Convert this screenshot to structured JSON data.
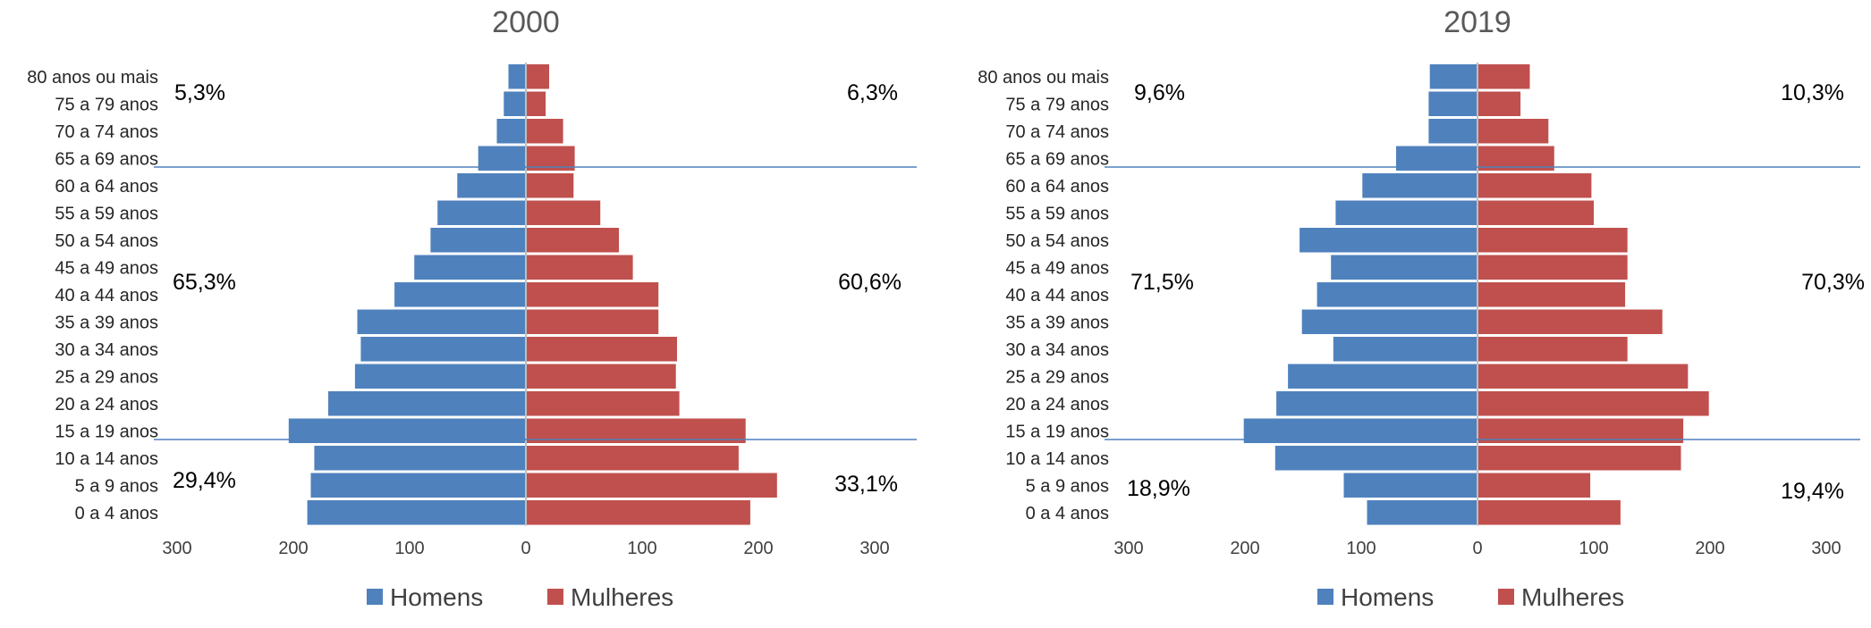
{
  "chart_data": [
    {
      "type": "bar",
      "orientation": "horizontal-population-pyramid",
      "title": "2000",
      "categories": [
        "80 anos ou mais",
        "75 a 79 anos",
        "70 a 74 anos",
        "65 a 69 anos",
        "60 a 64 anos",
        "55 a 59 anos",
        "50 a 54 anos",
        "45 a 49 anos",
        "40 a 44 anos",
        "35 a 39 anos",
        "30 a 34 anos",
        "25 a 29 anos",
        "20 a 24 anos",
        "15 a 19 anos",
        "10 a 14 anos",
        "5 a 9 anos",
        "0 a 4 anos"
      ],
      "series": [
        {
          "name": "Homens",
          "color": "#4F81BD",
          "side": "left",
          "values": [
            15,
            19,
            25,
            41,
            59,
            76,
            82,
            96,
            113,
            145,
            142,
            147,
            170,
            204,
            182,
            185,
            188
          ]
        },
        {
          "name": "Mulheres",
          "color": "#C0504D",
          "side": "right",
          "values": [
            20,
            17,
            32,
            42,
            41,
            64,
            80,
            92,
            114,
            114,
            130,
            129,
            132,
            189,
            183,
            216,
            193
          ]
        }
      ],
      "xticks": [
        "300",
        "200",
        "100",
        "0",
        "100",
        "200",
        "300"
      ],
      "xlim": [
        -300,
        300
      ],
      "annotations": {
        "men_top": "5,3%",
        "women_top": "6,3%",
        "men_mid": "65,3%",
        "women_mid": "60,6%",
        "men_bottom": "29,4%",
        "women_bottom": "33,1%"
      },
      "legend_position": "bottom",
      "grid": false
    },
    {
      "type": "bar",
      "orientation": "horizontal-population-pyramid",
      "title": "2019",
      "categories": [
        "80 anos ou mais",
        "75 a 79 anos",
        "70 a 74 anos",
        "65 a 69 anos",
        "60 a 64 anos",
        "55 a 59 anos",
        "50 a 54 anos",
        "45 a 49 anos",
        "40 a 44 anos",
        "35 a 39 anos",
        "30 a 34 anos",
        "25 a 29 anos",
        "20 a 24 anos",
        "15 a 19 anos",
        "10 a 14 anos",
        "5 a 9 anos",
        "0 a 4 anos"
      ],
      "series": [
        {
          "name": "Homens",
          "color": "#4F81BD",
          "side": "left",
          "values": [
            41,
            42,
            42,
            70,
            99,
            122,
            153,
            126,
            138,
            151,
            124,
            163,
            173,
            201,
            174,
            115,
            95
          ]
        },
        {
          "name": "Mulheres",
          "color": "#C0504D",
          "side": "right",
          "values": [
            45,
            37,
            61,
            66,
            98,
            100,
            129,
            129,
            127,
            159,
            129,
            181,
            199,
            177,
            175,
            97,
            123
          ]
        }
      ],
      "xticks": [
        "300",
        "200",
        "100",
        "0",
        "100",
        "200",
        "300"
      ],
      "xlim": [
        -300,
        300
      ],
      "annotations": {
        "men_top": "9,6%",
        "women_top": "10,3%",
        "men_mid": "71,5%",
        "women_mid": "70,3%",
        "men_bottom": "18,9%",
        "women_bottom": "19,4%"
      },
      "legend_position": "bottom",
      "grid": false
    }
  ]
}
